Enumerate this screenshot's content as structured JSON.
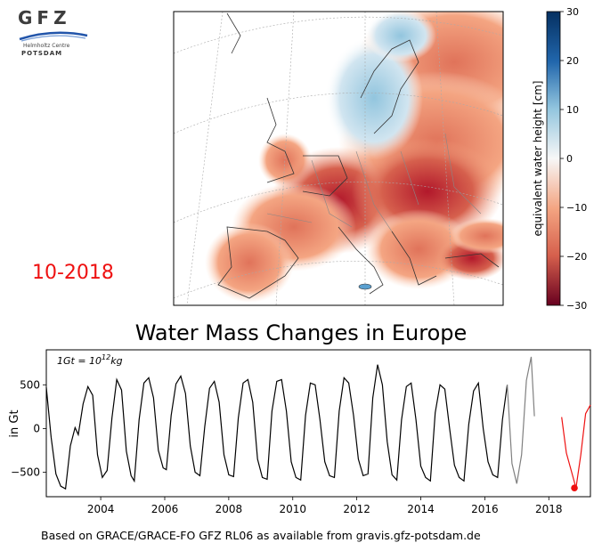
{
  "logo": {
    "mark": "GFZ",
    "organisation": "Helmholtz Centre",
    "city": "POTSDAM"
  },
  "date_label": "10-2018",
  "title": "Water Mass Changes in Europe",
  "footnote": "Based on GRACE/GRACE-FO GFZ RL06 as available from gravis.gfz-potsdam.de",
  "colors": {
    "series_black": "#000000",
    "series_gray": "#808080",
    "series_red": "#ee1111",
    "wet": "#053061",
    "dry": "#67001f"
  },
  "chart_data": [
    {
      "type": "heatmap",
      "title": "",
      "colorbar": {
        "label": "equivalent water height [cm]",
        "range": [
          -30,
          30
        ],
        "ticks": [
          "30",
          "20",
          "10",
          "0",
          "−10",
          "−20",
          "−30"
        ],
        "colormap": "RdBu"
      }
    },
    {
      "type": "line",
      "title": "Water Mass Changes in Europe",
      "ylabel": "in Gt",
      "annotation": "1Gt = 10^12 kg",
      "annotation_parts": {
        "base": "1Gt = 10",
        "exp": "12",
        "unit": "kg"
      },
      "xlim": [
        2002.3,
        2019.3
      ],
      "ylim": [
        -780,
        900
      ],
      "x_ticks": [
        "2004",
        "2006",
        "2008",
        "2010",
        "2012",
        "2014",
        "2016",
        "2018"
      ],
      "y_ticks": [
        "500",
        "0",
        "−500"
      ],
      "grid": false,
      "series": [
        {
          "style": "solid-black",
          "x": [
            2002.3,
            2002.45,
            2002.6,
            2002.75,
            2002.9,
            2003.05,
            2003.2,
            2003.3,
            2003.45,
            2003.6,
            2003.75,
            2003.9,
            2004.05,
            2004.2,
            2004.35,
            2004.5,
            2004.65,
            2004.8,
            2004.95,
            2005.05,
            2005.2,
            2005.35,
            2005.5,
            2005.65,
            2005.8,
            2005.95,
            2006.05,
            2006.2,
            2006.35,
            2006.5,
            2006.65,
            2006.8,
            2006.95,
            2007.1,
            2007.25,
            2007.4,
            2007.55,
            2007.7,
            2007.85,
            2008.0,
            2008.15,
            2008.3,
            2008.45,
            2008.6,
            2008.75,
            2008.9,
            2009.05,
            2009.2,
            2009.35,
            2009.5,
            2009.65,
            2009.8,
            2009.95,
            2010.1,
            2010.25,
            2010.4,
            2010.55,
            2010.7,
            2010.85,
            2011.0,
            2011.15,
            2011.3,
            2011.45,
            2011.6,
            2011.75,
            2011.9,
            2012.05,
            2012.2,
            2012.35,
            2012.5,
            2012.65,
            2012.8,
            2012.95,
            2013.1,
            2013.25,
            2013.4,
            2013.55,
            2013.7,
            2013.85,
            2014.0,
            2014.15,
            2014.3,
            2014.45,
            2014.6,
            2014.75,
            2014.9,
            2015.05,
            2015.2,
            2015.35,
            2015.5,
            2015.65,
            2015.8,
            2015.95,
            2016.1,
            2016.25,
            2016.4,
            2016.55,
            2016.7
          ],
          "y": [
            470,
            -100,
            -520,
            -660,
            -690,
            -200,
            10,
            -70,
            280,
            480,
            380,
            -300,
            -560,
            -480,
            120,
            560,
            440,
            -260,
            -540,
            -600,
            100,
            520,
            580,
            350,
            -250,
            -450,
            -470,
            150,
            510,
            600,
            400,
            -200,
            -500,
            -540,
            20,
            460,
            540,
            300,
            -300,
            -530,
            -550,
            120,
            520,
            560,
            300,
            -350,
            -560,
            -580,
            200,
            540,
            560,
            200,
            -380,
            -560,
            -590,
            150,
            520,
            500,
            100,
            -380,
            -540,
            -560,
            200,
            580,
            520,
            150,
            -350,
            -540,
            -520,
            350,
            730,
            500,
            -150,
            -530,
            -590,
            100,
            480,
            520,
            100,
            -430,
            -560,
            -600,
            180,
            500,
            450,
            0,
            -420,
            -560,
            -600,
            50,
            430,
            520,
            0,
            -380,
            -530,
            -560,
            100,
            500
          ]
        },
        {
          "style": "solid-gray",
          "x": [
            2016.7,
            2016.85,
            2017.0,
            2017.15,
            2017.3,
            2017.45,
            2017.55
          ],
          "y": [
            500,
            -400,
            -630,
            -300,
            550,
            820,
            140
          ]
        },
        {
          "style": "solid-red",
          "x": [
            2018.4,
            2018.55,
            2018.7,
            2018.85,
            2019.0,
            2019.15,
            2019.3
          ],
          "y": [
            130,
            -280,
            -480,
            -680,
            -300,
            170,
            270
          ]
        }
      ],
      "highlight_point": {
        "x": 2018.8,
        "y": -680
      }
    }
  ]
}
